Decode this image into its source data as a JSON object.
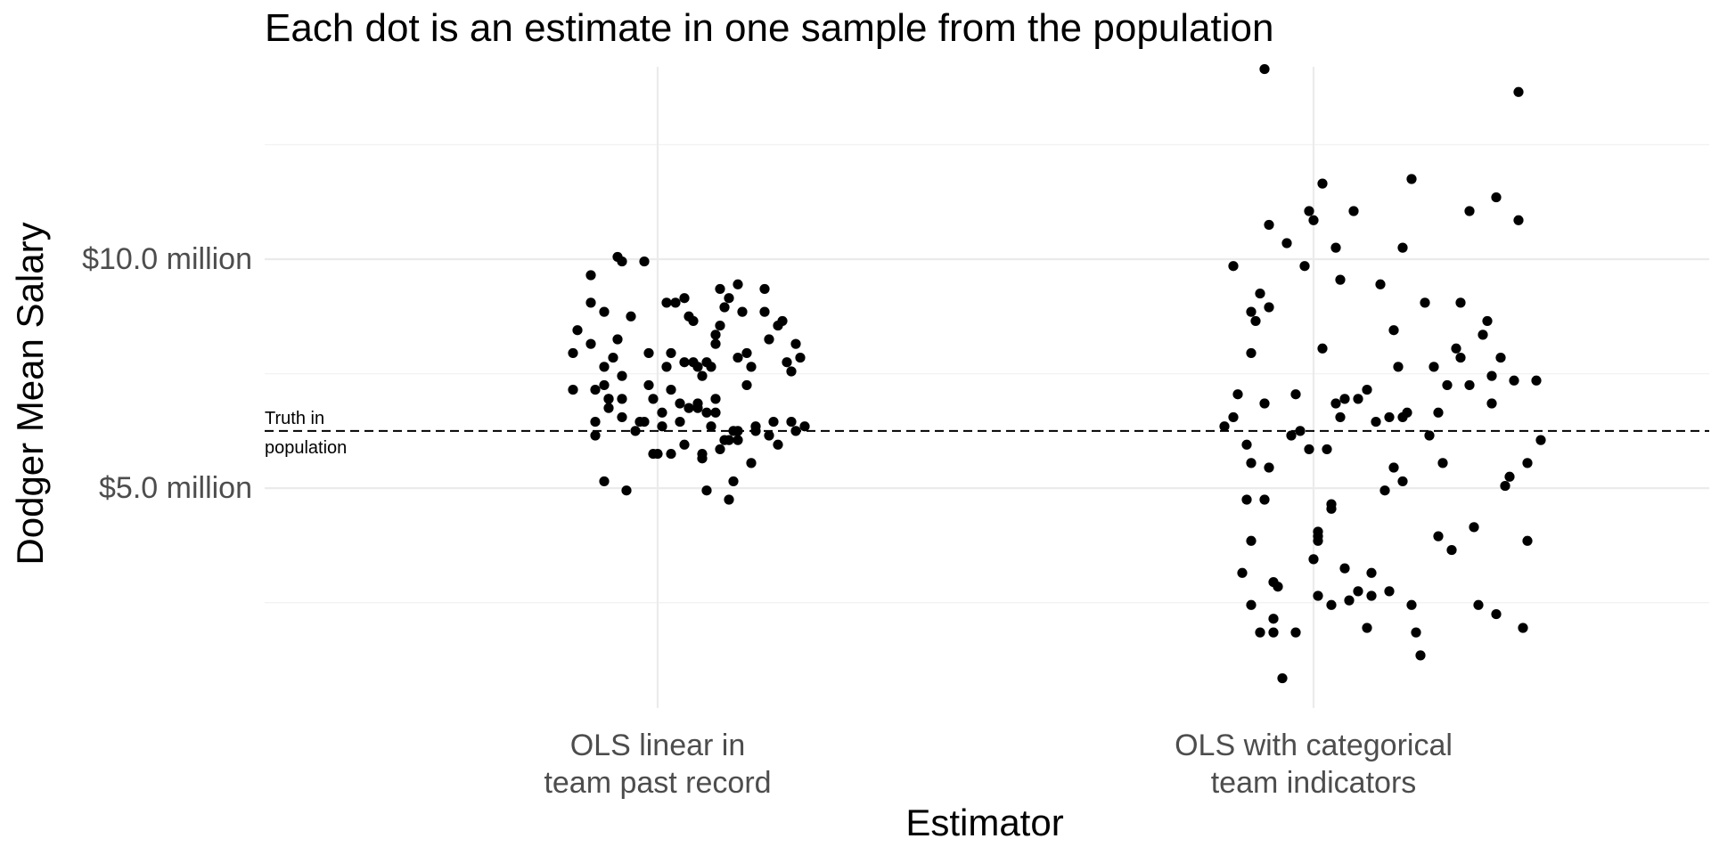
{
  "chart_data": {
    "type": "scatter",
    "title": "Each dot is an estimate in one sample from the population",
    "xlabel": "Estimator",
    "ylabel": "Dodger Mean Salary",
    "categories": [
      [
        "OLS linear in",
        "team past record"
      ],
      [
        "OLS with categorical",
        "team indicators"
      ]
    ],
    "y_tick_values": [
      5.0,
      10.0
    ],
    "y_tick_labels": [
      "$5.0 million",
      "$10.0 million"
    ],
    "ylim": [
      0.2,
      14.2
    ],
    "grid": true,
    "reference_line": {
      "value": 6.25,
      "style": "dashed",
      "label_lines": [
        "Truth in",
        "population"
      ]
    },
    "series": [
      {
        "category_index": 0,
        "points": [
          [
            -0.19,
            7.95
          ],
          [
            -0.19,
            7.15
          ],
          [
            -0.18,
            8.45
          ],
          [
            -0.15,
            8.15
          ],
          [
            -0.15,
            9.65
          ],
          [
            -0.15,
            9.05
          ],
          [
            -0.14,
            7.15
          ],
          [
            -0.14,
            6.45
          ],
          [
            -0.14,
            6.15
          ],
          [
            -0.12,
            5.15
          ],
          [
            -0.12,
            8.85
          ],
          [
            -0.12,
            7.65
          ],
          [
            -0.12,
            7.25
          ],
          [
            -0.11,
            6.95
          ],
          [
            -0.11,
            6.75
          ],
          [
            -0.11,
            6.95
          ],
          [
            -0.1,
            7.85
          ],
          [
            -0.09,
            10.05
          ],
          [
            -0.09,
            8.25
          ],
          [
            -0.08,
            9.95
          ],
          [
            -0.08,
            7.45
          ],
          [
            -0.08,
            6.95
          ],
          [
            -0.08,
            6.55
          ],
          [
            -0.07,
            4.95
          ],
          [
            -0.06,
            8.75
          ],
          [
            -0.05,
            6.25
          ],
          [
            -0.04,
            6.45
          ],
          [
            -0.03,
            9.95
          ],
          [
            -0.03,
            6.45
          ],
          [
            -0.02,
            7.95
          ],
          [
            -0.02,
            7.25
          ],
          [
            -0.01,
            6.95
          ],
          [
            -0.01,
            5.75
          ],
          [
            0.0,
            5.75
          ],
          [
            0.01,
            6.35
          ],
          [
            0.01,
            6.65
          ],
          [
            0.02,
            9.05
          ],
          [
            0.02,
            7.65
          ],
          [
            0.03,
            7.95
          ],
          [
            0.03,
            7.15
          ],
          [
            0.03,
            5.75
          ],
          [
            0.04,
            9.05
          ],
          [
            0.05,
            6.85
          ],
          [
            0.05,
            6.45
          ],
          [
            0.06,
            9.15
          ],
          [
            0.06,
            7.75
          ],
          [
            0.06,
            5.95
          ],
          [
            0.07,
            8.75
          ],
          [
            0.07,
            6.75
          ],
          [
            0.08,
            8.65
          ],
          [
            0.08,
            7.75
          ],
          [
            0.09,
            7.65
          ],
          [
            0.09,
            6.85
          ],
          [
            0.09,
            6.75
          ],
          [
            0.1,
            7.45
          ],
          [
            0.1,
            5.65
          ],
          [
            0.1,
            5.75
          ],
          [
            0.11,
            7.75
          ],
          [
            0.11,
            6.65
          ],
          [
            0.11,
            4.95
          ],
          [
            0.12,
            7.65
          ],
          [
            0.12,
            6.35
          ],
          [
            0.13,
            8.35
          ],
          [
            0.13,
            8.15
          ],
          [
            0.13,
            6.65
          ],
          [
            0.13,
            6.95
          ],
          [
            0.14,
            9.35
          ],
          [
            0.14,
            8.55
          ],
          [
            0.14,
            5.85
          ],
          [
            0.15,
            8.95
          ],
          [
            0.15,
            6.05
          ],
          [
            0.16,
            9.15
          ],
          [
            0.16,
            6.05
          ],
          [
            0.16,
            4.75
          ],
          [
            0.17,
            5.15
          ],
          [
            0.17,
            6.25
          ],
          [
            0.18,
            9.45
          ],
          [
            0.18,
            6.05
          ],
          [
            0.18,
            6.25
          ],
          [
            0.18,
            7.85
          ],
          [
            0.19,
            8.85
          ],
          [
            0.2,
            7.95
          ],
          [
            0.2,
            7.25
          ],
          [
            0.21,
            7.65
          ],
          [
            0.21,
            5.55
          ],
          [
            0.22,
            6.35
          ],
          [
            0.22,
            6.25
          ],
          [
            0.24,
            8.85
          ],
          [
            0.24,
            9.35
          ],
          [
            0.25,
            8.25
          ],
          [
            0.25,
            6.15
          ],
          [
            0.26,
            6.45
          ],
          [
            0.27,
            8.55
          ],
          [
            0.27,
            5.95
          ],
          [
            0.28,
            8.65
          ],
          [
            0.29,
            7.75
          ],
          [
            0.3,
            7.55
          ],
          [
            0.3,
            6.45
          ],
          [
            0.31,
            6.25
          ],
          [
            0.31,
            8.15
          ],
          [
            0.32,
            7.85
          ],
          [
            0.33,
            6.35
          ]
        ]
      },
      {
        "category_index": 1,
        "points": [
          [
            -0.2,
            6.35
          ],
          [
            -0.18,
            9.85
          ],
          [
            -0.18,
            6.55
          ],
          [
            -0.17,
            7.05
          ],
          [
            -0.16,
            3.15
          ],
          [
            -0.15,
            5.95
          ],
          [
            -0.15,
            4.75
          ],
          [
            -0.14,
            7.95
          ],
          [
            -0.14,
            8.85
          ],
          [
            -0.14,
            5.55
          ],
          [
            -0.14,
            3.85
          ],
          [
            -0.14,
            2.45
          ],
          [
            -0.13,
            8.65
          ],
          [
            -0.12,
            9.25
          ],
          [
            -0.12,
            1.85
          ],
          [
            -0.11,
            14.15
          ],
          [
            -0.11,
            6.85
          ],
          [
            -0.11,
            4.75
          ],
          [
            -0.1,
            5.45
          ],
          [
            -0.1,
            10.75
          ],
          [
            -0.1,
            8.95
          ],
          [
            -0.09,
            2.15
          ],
          [
            -0.09,
            2.95
          ],
          [
            -0.09,
            1.85
          ],
          [
            -0.08,
            2.85
          ],
          [
            -0.07,
            0.85
          ],
          [
            -0.06,
            10.35
          ],
          [
            -0.05,
            6.15
          ],
          [
            -0.04,
            7.05
          ],
          [
            -0.04,
            1.85
          ],
          [
            -0.03,
            6.25
          ],
          [
            -0.02,
            9.85
          ],
          [
            -0.01,
            11.05
          ],
          [
            0.0,
            10.85
          ],
          [
            -0.01,
            5.85
          ],
          [
            0.0,
            3.45
          ],
          [
            0.01,
            3.85
          ],
          [
            0.01,
            4.05
          ],
          [
            0.01,
            3.95
          ],
          [
            0.01,
            2.65
          ],
          [
            0.02,
            11.65
          ],
          [
            0.02,
            8.05
          ],
          [
            0.03,
            5.85
          ],
          [
            0.04,
            4.55
          ],
          [
            0.04,
            4.65
          ],
          [
            0.04,
            2.45
          ],
          [
            0.05,
            10.25
          ],
          [
            0.05,
            6.85
          ],
          [
            0.06,
            9.55
          ],
          [
            0.06,
            6.55
          ],
          [
            0.07,
            6.95
          ],
          [
            0.07,
            3.25
          ],
          [
            0.08,
            2.55
          ],
          [
            0.09,
            11.05
          ],
          [
            0.1,
            6.95
          ],
          [
            0.1,
            2.75
          ],
          [
            0.12,
            1.95
          ],
          [
            0.12,
            7.15
          ],
          [
            0.13,
            3.15
          ],
          [
            0.13,
            2.65
          ],
          [
            0.14,
            6.45
          ],
          [
            0.15,
            9.45
          ],
          [
            0.16,
            4.95
          ],
          [
            0.17,
            2.75
          ],
          [
            0.17,
            6.55
          ],
          [
            0.18,
            8.45
          ],
          [
            0.18,
            5.45
          ],
          [
            0.19,
            7.65
          ],
          [
            0.2,
            6.55
          ],
          [
            0.2,
            10.25
          ],
          [
            0.2,
            5.15
          ],
          [
            0.21,
            6.65
          ],
          [
            0.22,
            11.75
          ],
          [
            0.22,
            2.45
          ],
          [
            0.23,
            1.85
          ],
          [
            0.24,
            1.35
          ],
          [
            0.25,
            9.05
          ],
          [
            0.26,
            6.15
          ],
          [
            0.27,
            7.65
          ],
          [
            0.28,
            6.65
          ],
          [
            0.28,
            3.95
          ],
          [
            0.29,
            5.55
          ],
          [
            0.3,
            7.25
          ],
          [
            0.31,
            3.65
          ],
          [
            0.32,
            8.05
          ],
          [
            0.33,
            7.85
          ],
          [
            0.33,
            9.05
          ],
          [
            0.35,
            7.25
          ],
          [
            0.35,
            11.05
          ],
          [
            0.36,
            4.15
          ],
          [
            0.37,
            2.45
          ],
          [
            0.38,
            8.35
          ],
          [
            0.39,
            8.65
          ],
          [
            0.4,
            7.45
          ],
          [
            0.4,
            6.85
          ],
          [
            0.41,
            11.35
          ],
          [
            0.41,
            2.25
          ],
          [
            0.42,
            7.85
          ],
          [
            0.43,
            5.05
          ],
          [
            0.44,
            5.25
          ],
          [
            0.45,
            7.35
          ],
          [
            0.46,
            10.85
          ],
          [
            0.46,
            13.65
          ],
          [
            0.47,
            1.95
          ],
          [
            0.48,
            5.55
          ],
          [
            0.48,
            3.85
          ],
          [
            0.5,
            7.35
          ],
          [
            0.51,
            6.05
          ]
        ]
      }
    ]
  }
}
